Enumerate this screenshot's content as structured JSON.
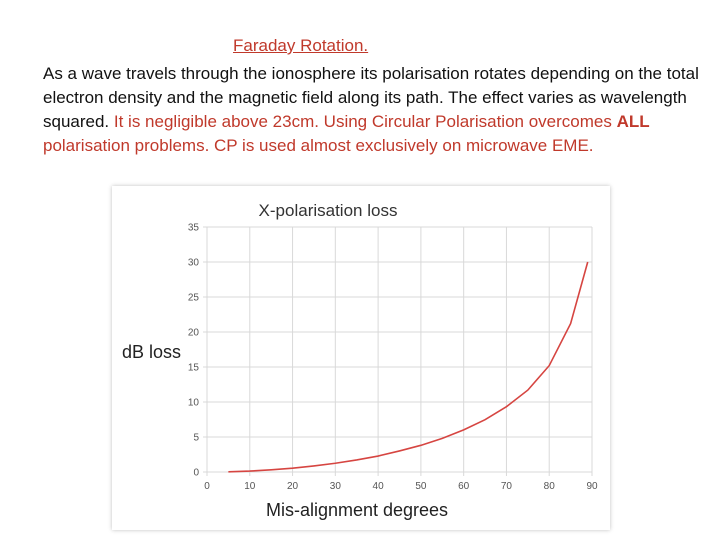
{
  "slide": {
    "heading": "Faraday Rotation.",
    "para_part1": "As a wave travels through the ionosphere its polarisation rotates depending on the total electron density and the magnetic field along its path. The effect varies as wavelength squared. ",
    "para_part2": "It is negligible above 23cm. Using Circular Polarisation overcomes ",
    "para_bold": "ALL",
    "para_part3": " polarisation problems. CP is used almost exclusively on microwave EME."
  },
  "colors": {
    "curve": "#d64541",
    "text_red": "#c0392b",
    "grid": "#d9d9d9"
  },
  "chart_data": {
    "type": "line",
    "title": "X-polarisation loss",
    "xlabel": "Mis-alignment degrees",
    "ylabel": "dB loss",
    "xlim": [
      0,
      90
    ],
    "ylim": [
      0,
      35
    ],
    "x_ticks": [
      0,
      10,
      20,
      30,
      40,
      50,
      60,
      70,
      80,
      90
    ],
    "y_ticks": [
      0,
      5,
      10,
      15,
      20,
      25,
      30,
      35
    ],
    "grid": true,
    "series": [
      {
        "x": [
          5,
          10,
          15,
          20,
          25,
          30,
          35,
          40,
          45,
          50,
          55,
          60,
          65,
          70,
          75,
          80,
          85,
          89
        ],
        "values": [
          0.03,
          0.13,
          0.31,
          0.55,
          0.87,
          1.25,
          1.72,
          2.28,
          3.01,
          3.81,
          4.8,
          6.02,
          7.47,
          9.33,
          11.7,
          15.2,
          21.2,
          30
        ]
      }
    ]
  }
}
